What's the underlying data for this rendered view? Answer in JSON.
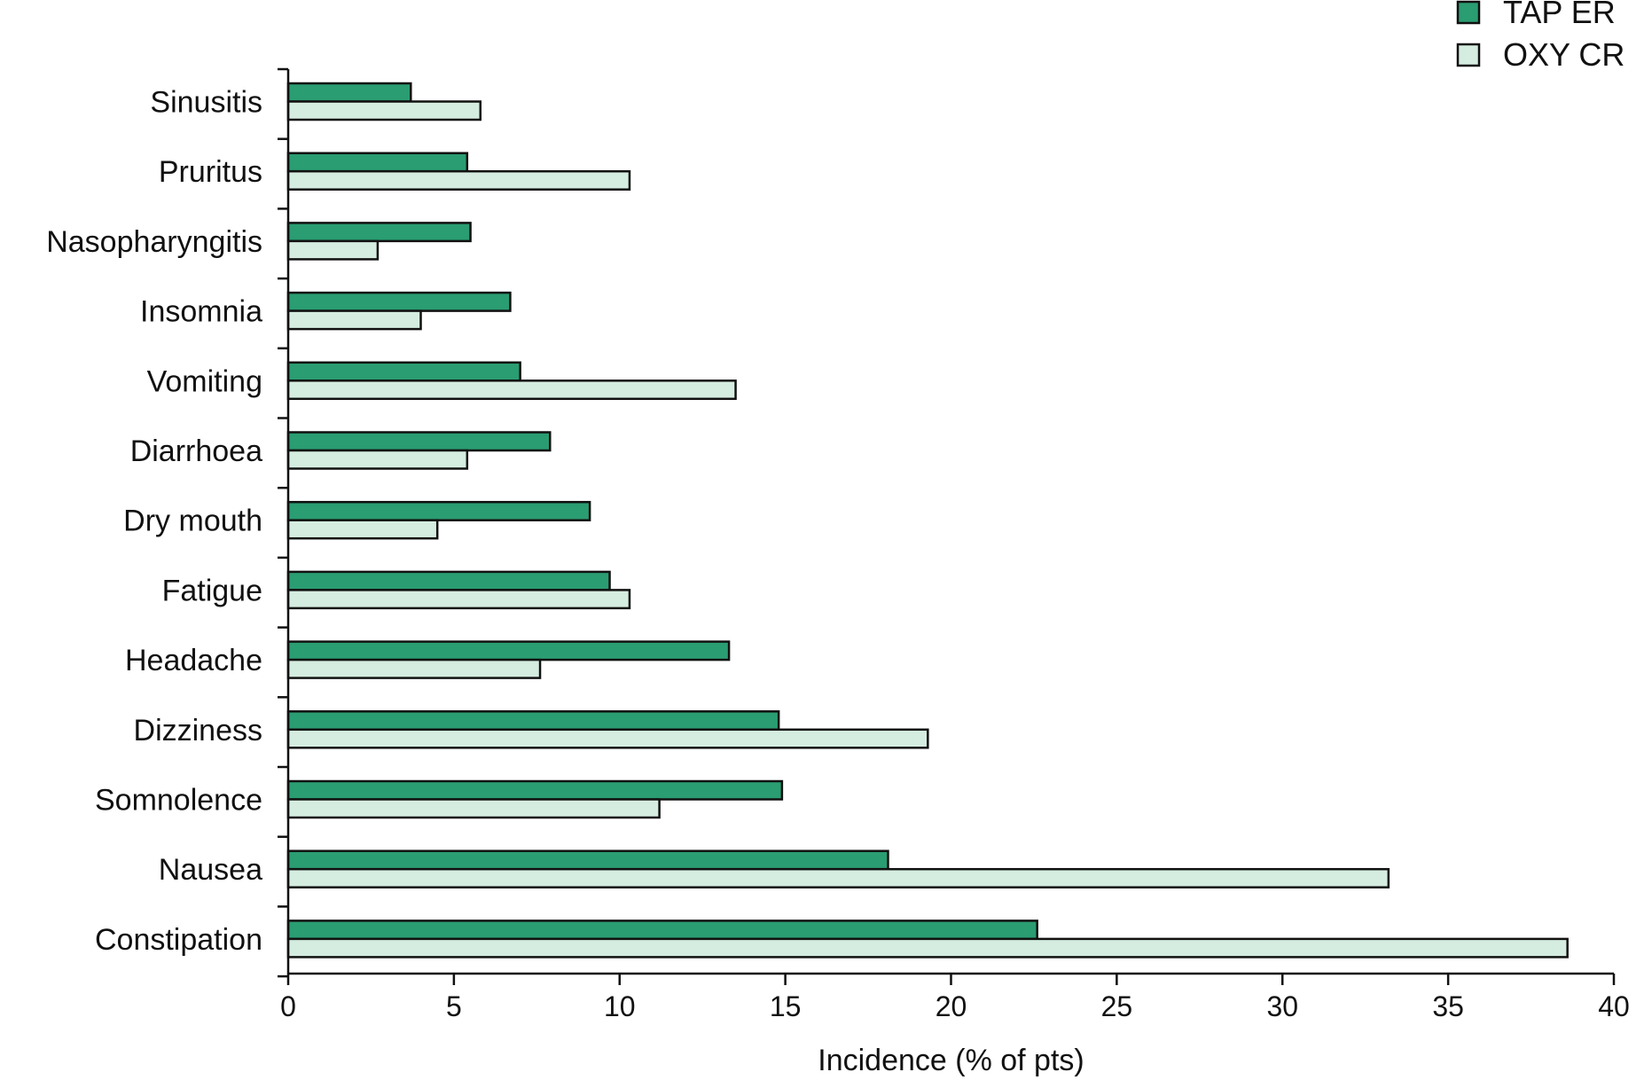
{
  "chart_data": {
    "type": "bar",
    "orientation": "horizontal",
    "title": "",
    "xlabel": "Incidence (% of pts)",
    "ylabel": "",
    "xlim": [
      0,
      40
    ],
    "xticks": [
      "0",
      "5",
      "10",
      "15",
      "20",
      "25",
      "30",
      "35",
      "40"
    ],
    "grid": false,
    "legend_position": "top-right",
    "categories": [
      "Sinusitis",
      "Pruritus",
      "Nasopharyngitis",
      "Insomnia",
      "Vomiting",
      "Diarrhoea",
      "Dry mouth",
      "Fatigue",
      "Headache",
      "Dizziness",
      "Somnolence",
      "Nausea",
      "Constipation"
    ],
    "series": [
      {
        "name": "TAP ER",
        "color": "#2a9d72",
        "values": [
          3.7,
          5.4,
          5.5,
          6.7,
          7.0,
          7.9,
          9.1,
          9.7,
          13.3,
          14.8,
          14.9,
          18.1,
          22.6
        ]
      },
      {
        "name": "OXY CR",
        "color": "#d5ede0",
        "values": [
          5.8,
          10.3,
          2.7,
          4.0,
          13.5,
          5.4,
          4.5,
          10.3,
          7.6,
          19.3,
          11.2,
          33.2,
          38.6
        ]
      }
    ]
  }
}
